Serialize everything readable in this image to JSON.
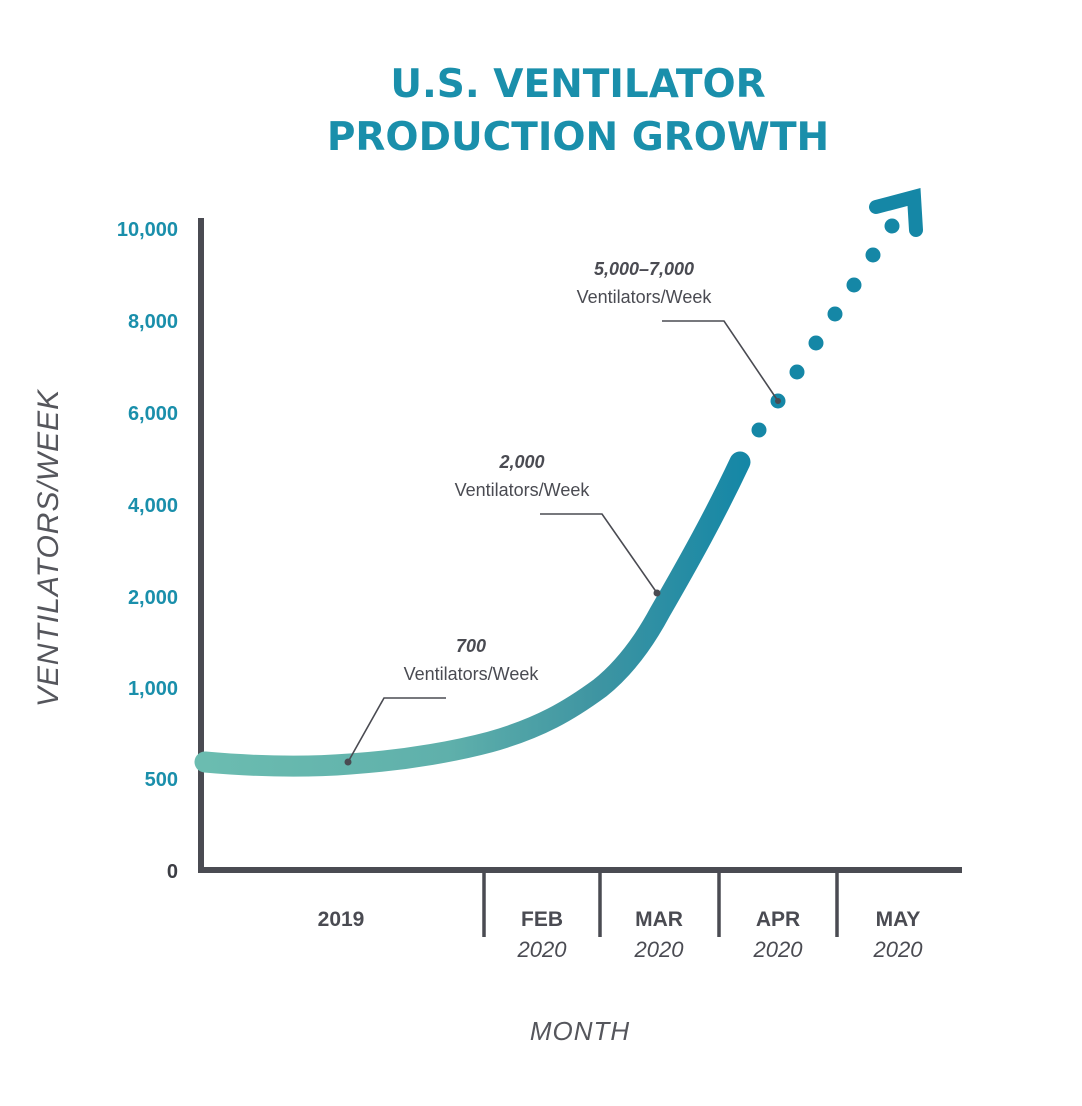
{
  "chart_data": {
    "type": "line",
    "title_lines": [
      "U.S. VENTILATOR",
      "PRODUCTION GROWTH"
    ],
    "xlabel": "MONTH",
    "ylabel": "VENTILATORS/WEEK",
    "y_ticks": [
      "10,000",
      "8,000",
      "6,000",
      "4,000",
      "2,000",
      "1,000",
      "500",
      "0"
    ],
    "x_categories": [
      {
        "label": "2019",
        "year": ""
      },
      {
        "label": "FEB",
        "year": "2020"
      },
      {
        "label": "MAR",
        "year": "2020"
      },
      {
        "label": "APR",
        "year": "2020"
      },
      {
        "label": "MAY",
        "year": "2020"
      }
    ],
    "series": [
      {
        "x": [
          "2019",
          "2019",
          "2019",
          "2019",
          "Feb 2020",
          "Mar 2020",
          "Mar 2020",
          "Apr 2020"
        ],
        "y": [
          600,
          550,
          570,
          650,
          800,
          1200,
          2200,
          5000
        ],
        "style": "solid"
      },
      {
        "x": [
          "Apr 2020",
          "Apr 2020",
          "May 2020"
        ],
        "y": [
          5600,
          7800,
          10500
        ],
        "style": "dotted-projection"
      }
    ],
    "annotations": [
      {
        "value": "700",
        "unit": "Ventilators/Week"
      },
      {
        "value": "2,000",
        "unit": "Ventilators/Week"
      },
      {
        "value": "5,000–7,000",
        "unit": "Ventilators/Week"
      }
    ],
    "colors": {
      "accent": "#1a8fab",
      "line_start": "#6bbcb0",
      "line_end": "#1587a6",
      "axis": "#4a4b52",
      "text": "#4a4b52"
    },
    "legend": "none",
    "grid": false
  }
}
